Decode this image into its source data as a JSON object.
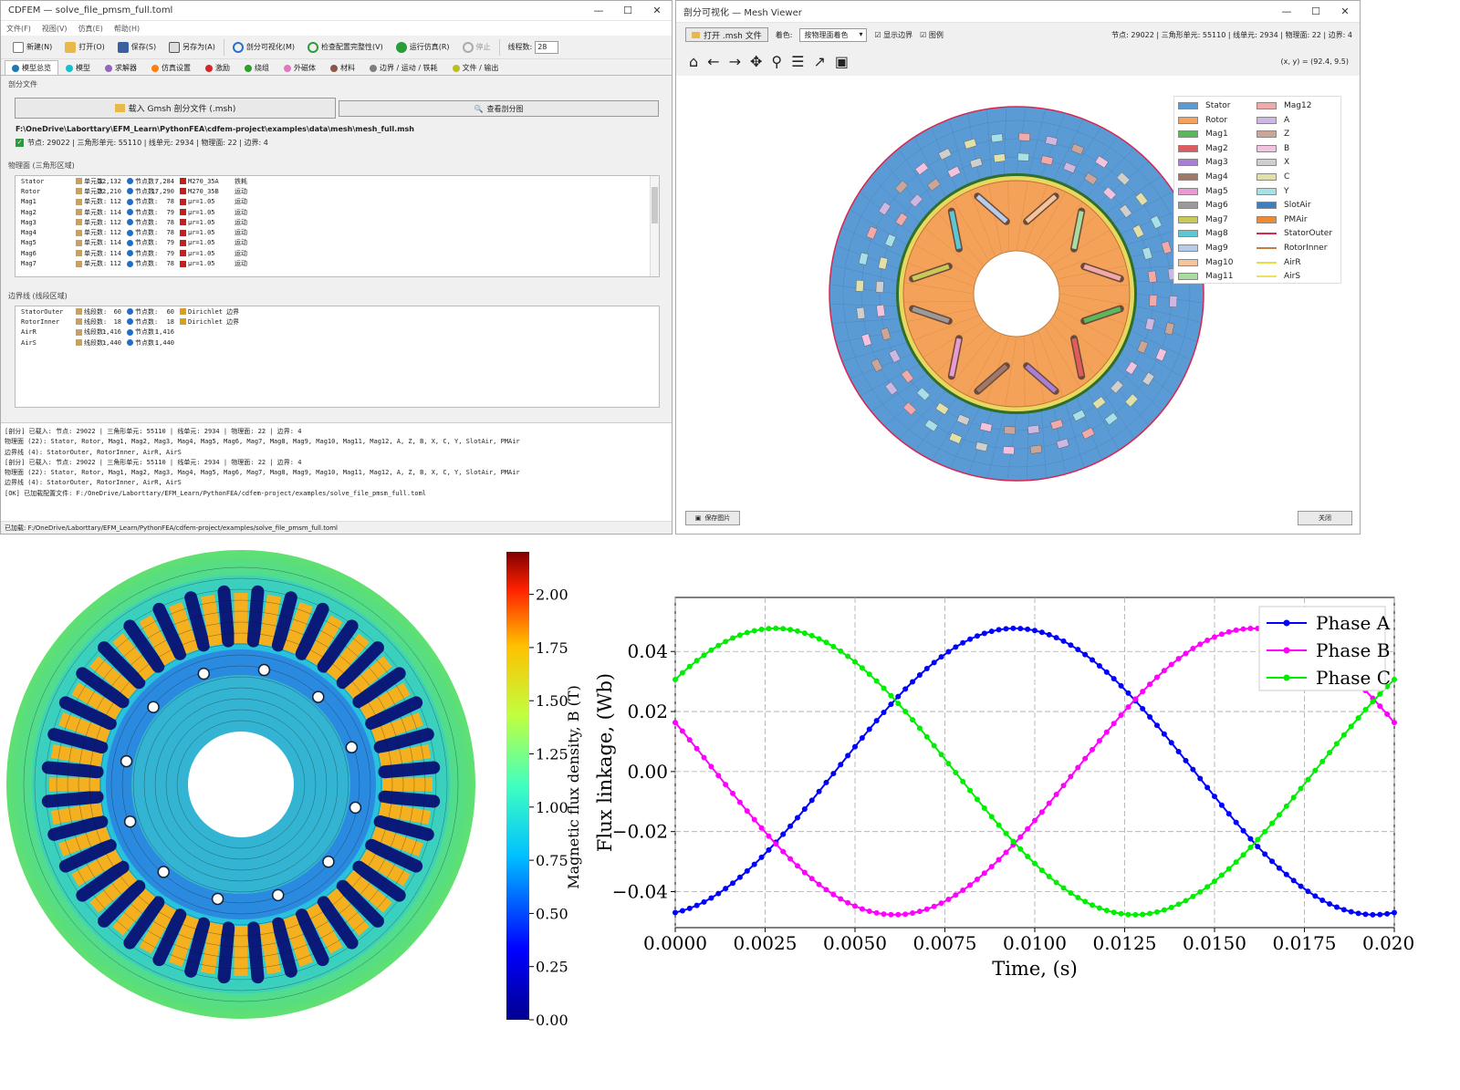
{
  "cdfem": {
    "title": "CDFEM — solve_file_pmsm_full.toml",
    "window_buttons": [
      "—",
      "☐",
      "✕"
    ],
    "menu": [
      "文件(F)",
      "视图(V)",
      "仿真(E)",
      "帮助(H)"
    ],
    "toolbar": {
      "new": "新建(N)",
      "open": "打开(O)",
      "save": "保存(S)",
      "save_as": "另存为(A)",
      "mesh_vis": "剖分可视化(M)",
      "check": "检查配置完整性(V)",
      "run": "运行仿真(R)",
      "stop": "停止",
      "threads_label": "线程数:",
      "threads_value": "28"
    },
    "tabs": [
      {
        "label": "模型总览",
        "color": "#1f77b4"
      },
      {
        "label": "模型",
        "color": "#17becf"
      },
      {
        "label": "求解器",
        "color": "#9467bd"
      },
      {
        "label": "仿真设置",
        "color": "#ff7f0e"
      },
      {
        "label": "激励",
        "color": "#d62728"
      },
      {
        "label": "绕组",
        "color": "#2ca02c"
      },
      {
        "label": "外磁体",
        "color": "#e377c2"
      },
      {
        "label": "材料",
        "color": "#8c564b"
      },
      {
        "label": "边界 / 运动 / 铁耗",
        "color": "#7f7f7f"
      },
      {
        "label": "文件 / 输出",
        "color": "#bcbd22"
      }
    ],
    "mesh_section": "剖分文件",
    "load_btn": "载入 Gmsh 剖分文件 (.msh)",
    "view_btn": "查看剖分图",
    "mesh_path": "F:\\OneDrive\\Laborttary\\EFM_Learn\\PythonFEA\\cdfem-project\\examples\\data\\mesh\\mesh_full.msh",
    "mesh_stats": "节点: 29022  |  三角形单元: 55110  |  线单元: 2934  |  物理面: 22  |  边界: 4",
    "phys_section": "物理面 (三角形区域)",
    "phys_headers": {
      "elem": "单元数:",
      "node": "节点数:"
    },
    "phys_rows": [
      {
        "name": "Stator",
        "elems": "12,132",
        "nodes": "7,284",
        "mat": "M270_35A",
        "tag": "铁耗"
      },
      {
        "name": "Rotor",
        "elems": "32,210",
        "nodes": "17,290",
        "mat": "M270_35B",
        "tag": "运动"
      },
      {
        "name": "Mag1",
        "elems": "112",
        "nodes": "78",
        "mat": "μr=1.05",
        "tag": "运动"
      },
      {
        "name": "Mag2",
        "elems": "114",
        "nodes": "79",
        "mat": "μr=1.05",
        "tag": "运动"
      },
      {
        "name": "Mag3",
        "elems": "112",
        "nodes": "78",
        "mat": "μr=1.05",
        "tag": "运动"
      },
      {
        "name": "Mag4",
        "elems": "112",
        "nodes": "78",
        "mat": "μr=1.05",
        "tag": "运动"
      },
      {
        "name": "Mag5",
        "elems": "114",
        "nodes": "79",
        "mat": "μr=1.05",
        "tag": "运动"
      },
      {
        "name": "Mag6",
        "elems": "114",
        "nodes": "79",
        "mat": "μr=1.05",
        "tag": "运动"
      },
      {
        "name": "Mag7",
        "elems": "112",
        "nodes": "78",
        "mat": "μr=1.05",
        "tag": "运动"
      }
    ],
    "bnd_section": "边界线 (线段区域)",
    "bnd_headers": {
      "seg": "线段数:",
      "node": "节点数:"
    },
    "bnd_rows": [
      {
        "name": "StatorOuter",
        "segs": "60",
        "nodes": "60",
        "bc": "Dirichlet 边界"
      },
      {
        "name": "RotorInner",
        "segs": "18",
        "nodes": "18",
        "bc": "Dirichlet 边界"
      },
      {
        "name": "AirR",
        "segs": "1,416",
        "nodes": "1,416",
        "bc": ""
      },
      {
        "name": "AirS",
        "segs": "1,440",
        "nodes": "1,440",
        "bc": ""
      }
    ],
    "log": [
      "[剖分] 已载入: 节点: 29022  |  三角形单元: 55110  |  线单元: 2934  |  物理面: 22  |  边界: 4",
      "  物理面 (22): Stator, Rotor, Mag1, Mag2, Mag3, Mag4, Mag5, Mag6, Mag7, Mag8, Mag9, Mag10, Mag11, Mag12, A, Z, B, X, C, Y, SlotAir, PMAir",
      "  边界线 (4): StatorOuter, RotorInner, AirR, AirS",
      "[剖分] 已载入: 节点: 29022  |  三角形单元: 55110  |  线单元: 2934  |  物理面: 22  |  边界: 4",
      "  物理面 (22): Stator, Rotor, Mag1, Mag2, Mag3, Mag4, Mag5, Mag6, Mag7, Mag8, Mag9, Mag10, Mag11, Mag12, A, Z, B, X, C, Y, SlotAir, PMAir",
      "  边界线 (4): StatorOuter, RotorInner, AirR, AirS",
      "[OK] 已加载配置文件: F:/OneDrive/Laborttary/EFM_Learn/PythonFEA/cdfem-project/examples/solve_file_pmsm_full.toml"
    ],
    "status": "已加载: F:/OneDrive/Laborttary/EFM_Learn/PythonFEA/cdfem-project/examples/solve_file_pmsm_full.toml"
  },
  "viewer": {
    "title": "剖分可视化 — Mesh Viewer",
    "open_btn": "打开 .msh 文件",
    "color_label": "着色:",
    "color_value": "按物理面着色",
    "show_bnd": "显示边界",
    "legend_chk": "图例",
    "stats": "节点: 29022  |  三角形单元: 55110  |  线单元: 2934  |  物理面: 22  |  边界: 4",
    "coords": "(x, y) = (92.4, 9.5)",
    "save_img": "保存图片",
    "close": "关闭",
    "legend_left": [
      {
        "name": "Stator",
        "color": "#5b9bd5",
        "kind": "patch"
      },
      {
        "name": "Rotor",
        "color": "#f4a259",
        "kind": "patch"
      },
      {
        "name": "Mag1",
        "color": "#5cb85c",
        "kind": "patch"
      },
      {
        "name": "Mag2",
        "color": "#e05c5c",
        "kind": "patch"
      },
      {
        "name": "Mag3",
        "color": "#a97fd6",
        "kind": "patch"
      },
      {
        "name": "Mag4",
        "color": "#a0786a",
        "kind": "patch"
      },
      {
        "name": "Mag5",
        "color": "#e89ad2",
        "kind": "patch"
      },
      {
        "name": "Mag6",
        "color": "#9a9a9a",
        "kind": "patch"
      },
      {
        "name": "Mag7",
        "color": "#c9c95a",
        "kind": "patch"
      },
      {
        "name": "Mag8",
        "color": "#5bc8d6",
        "kind": "patch"
      },
      {
        "name": "Mag9",
        "color": "#b7cce8",
        "kind": "patch"
      },
      {
        "name": "Mag10",
        "color": "#f6c49a",
        "kind": "patch"
      },
      {
        "name": "Mag11",
        "color": "#a8dca0",
        "kind": "patch"
      }
    ],
    "legend_right": [
      {
        "name": "Mag12",
        "color": "#f2a9a9",
        "kind": "patch"
      },
      {
        "name": "A",
        "color": "#cdb8e4",
        "kind": "patch"
      },
      {
        "name": "Z",
        "color": "#caa59a",
        "kind": "patch"
      },
      {
        "name": "B",
        "color": "#f2c2de",
        "kind": "patch"
      },
      {
        "name": "X",
        "color": "#cfcfcf",
        "kind": "patch"
      },
      {
        "name": "C",
        "color": "#e0e0a8",
        "kind": "patch"
      },
      {
        "name": "Y",
        "color": "#a8e0e8",
        "kind": "patch"
      },
      {
        "name": "SlotAir",
        "color": "#3f7fbf",
        "kind": "patch"
      },
      {
        "name": "PMAir",
        "color": "#f08a30",
        "kind": "patch"
      },
      {
        "name": "StatorOuter",
        "color": "#d62750",
        "kind": "line"
      },
      {
        "name": "RotorInner",
        "color": "#c08040",
        "kind": "line"
      },
      {
        "name": "AirR",
        "color": "#e8e040",
        "kind": "line"
      },
      {
        "name": "AirS",
        "color": "#f0e060",
        "kind": "line"
      }
    ]
  },
  "fluxmap": {
    "cbar_label": "Magnetic flux density, B (T)",
    "ticks": [
      "0.00",
      "0.25",
      "0.50",
      "0.75",
      "1.00",
      "1.25",
      "1.50",
      "1.75",
      "2.00"
    ]
  },
  "chart_data": {
    "type": "line",
    "xlabel": "Time, (s)",
    "ylabel": "Flux linkage, (Wb)",
    "xlim": [
      0,
      0.02
    ],
    "ylim": [
      -0.052,
      0.058
    ],
    "xticks": [
      "0.0000",
      "0.0025",
      "0.0050",
      "0.0075",
      "0.0100",
      "0.0125",
      "0.0150",
      "0.0175",
      "0.0200"
    ],
    "yticks": [
      "0.04",
      "0.02",
      "0.00",
      "−0.02",
      "−0.04"
    ],
    "grid": true,
    "legend_position": "top-right",
    "amplitude": 0.0477,
    "period": 0.02,
    "points": 101,
    "series": [
      {
        "name": "Phase A",
        "color": "#0000ff",
        "phase_deg": -80
      },
      {
        "name": "Phase B",
        "color": "#ff00ff",
        "phase_deg": 160
      },
      {
        "name": "Phase C",
        "color": "#00ee00",
        "phase_deg": 40
      }
    ]
  }
}
